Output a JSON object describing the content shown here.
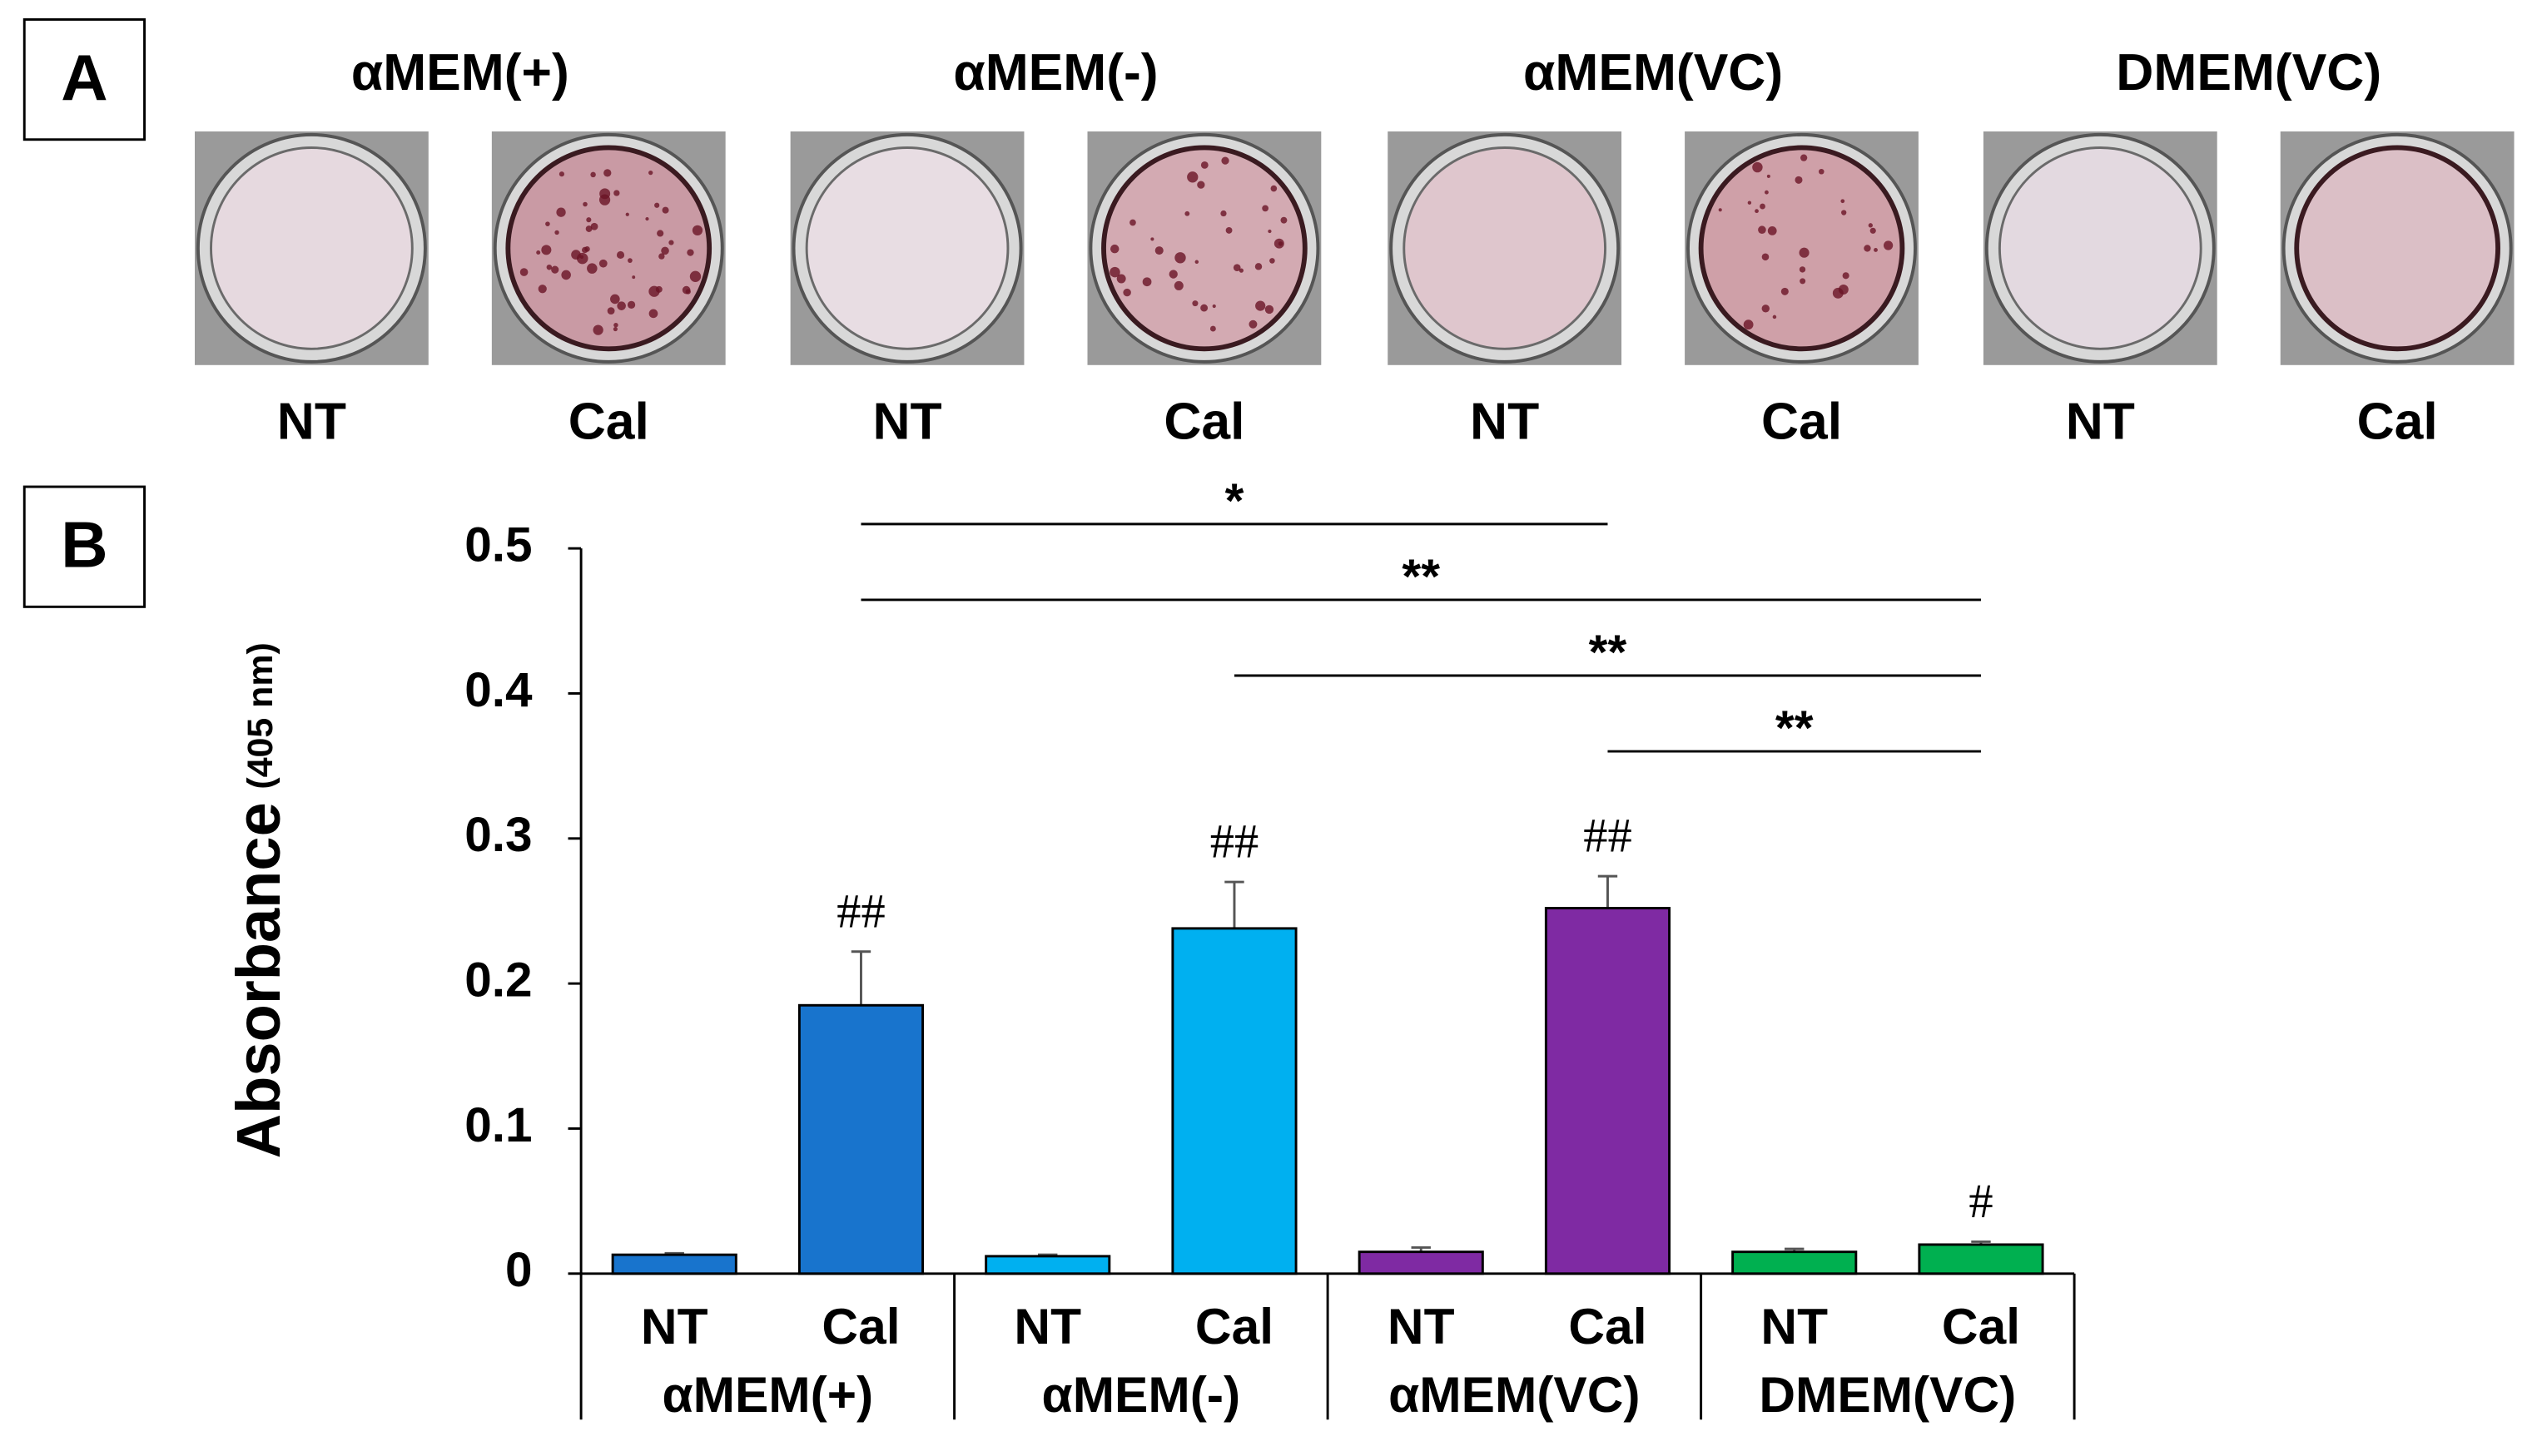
{
  "panel_a": {
    "label": "A"
  },
  "chart_data": {
    "type": "bar",
    "panel_label": "B",
    "y_label": "Absorbance",
    "y_label_unit": "(405 nm)",
    "groups": [
      "αMEM(+)",
      "αMEM(-)",
      "αMEM(VC)",
      "DMEM(VC)"
    ],
    "categories": [
      "NT",
      "Cal",
      "NT",
      "Cal",
      "NT",
      "Cal",
      "NT",
      "Cal"
    ],
    "values": [
      0.013,
      0.185,
      0.012,
      0.238,
      0.015,
      0.252,
      0.015,
      0.02
    ],
    "errors": [
      0.001,
      0.037,
      0.001,
      0.032,
      0.003,
      0.022,
      0.002,
      0.002
    ],
    "colors": [
      "#1874cd",
      "#1874cd",
      "#00b0f0",
      "#00b0f0",
      "#7f2aa3",
      "#7f2aa3",
      "#00b050",
      "#00b050"
    ],
    "value_annotations": [
      null,
      "##",
      null,
      "##",
      null,
      "##",
      null,
      "#"
    ],
    "significance": [
      {
        "pair": [
          1,
          5
        ],
        "label": "*"
      },
      {
        "pair": [
          1,
          7
        ],
        "label": "**"
      },
      {
        "pair": [
          3,
          7
        ],
        "label": "**"
      },
      {
        "pair": [
          5,
          7
        ],
        "label": "**"
      }
    ],
    "ylim": [
      0,
      0.5
    ],
    "yticks": [
      0,
      0.1,
      0.2,
      0.3,
      0.4,
      0.5
    ]
  }
}
